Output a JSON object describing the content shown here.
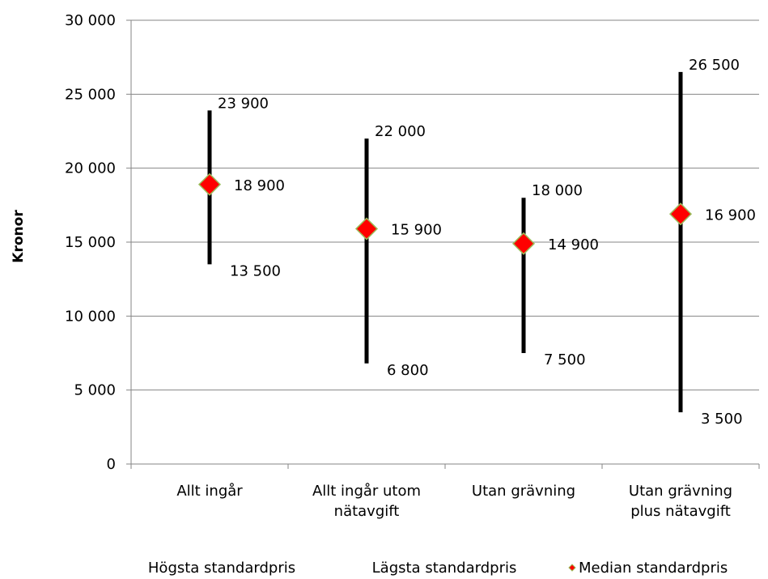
{
  "chart_data": {
    "type": "high-low-median",
    "ylabel": "Kronor",
    "xlabel": "",
    "ylim": [
      0,
      30000
    ],
    "y_ticks": [
      0,
      5000,
      10000,
      15000,
      20000,
      25000,
      30000
    ],
    "y_tick_labels": [
      "0",
      "5 000",
      "10 000",
      "15 000",
      "20 000",
      "25 000",
      "30 000"
    ],
    "grid": true,
    "legend_position": "bottom",
    "categories": [
      [
        "Allt ingår"
      ],
      [
        "Allt ingår utom",
        "nätavgift"
      ],
      [
        "Utan grävning"
      ],
      [
        "Utan grävning",
        "plus nätavgift"
      ]
    ],
    "series": [
      {
        "name": "Högsta standardpris",
        "values": [
          23900,
          22000,
          18000,
          26500
        ],
        "labels": [
          "23 900",
          "22 000",
          "18 000",
          "26 500"
        ]
      },
      {
        "name": "Lägsta standardpris",
        "values": [
          13500,
          6800,
          7500,
          3500
        ],
        "labels": [
          "13 500",
          "6 800",
          "7 500",
          "3 500"
        ]
      },
      {
        "name": "Median standardpris",
        "values": [
          18900,
          15900,
          14900,
          16900
        ],
        "labels": [
          "18 900",
          "15 900",
          "14 900",
          "16 900"
        ]
      }
    ],
    "colors": {
      "range_bar": "#000000",
      "median_fill": "#ff0000",
      "median_stroke": "#9bbb59",
      "grid": "#868686",
      "axis": "#868686"
    }
  }
}
